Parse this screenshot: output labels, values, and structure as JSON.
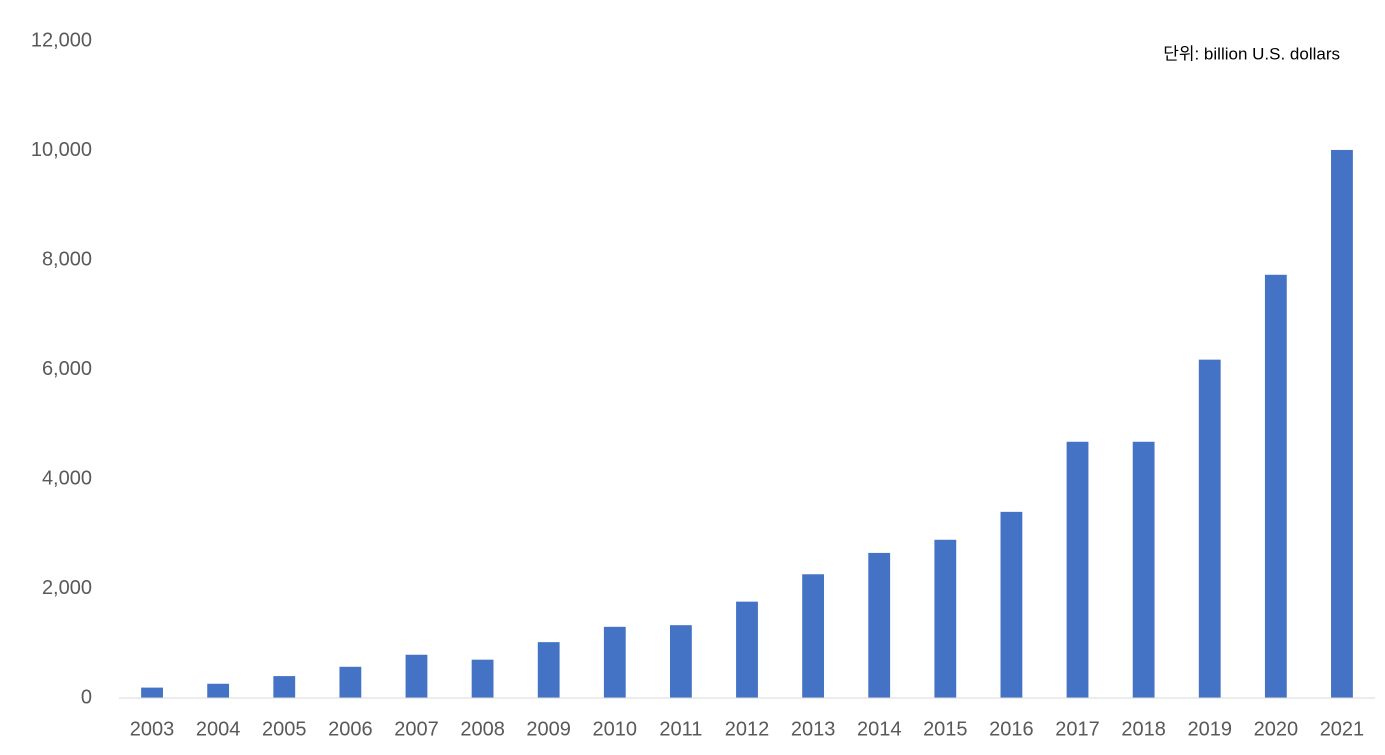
{
  "chart_data": {
    "type": "bar",
    "annotation": "단위: billion U.S. dollars",
    "categories": [
      "2003",
      "2004",
      "2005",
      "2006",
      "2007",
      "2008",
      "2009",
      "2010",
      "2011",
      "2012",
      "2013",
      "2014",
      "2015",
      "2016",
      "2017",
      "2018",
      "2019",
      "2020",
      "2021"
    ],
    "values": [
      190,
      260,
      400,
      570,
      790,
      700,
      1020,
      1300,
      1330,
      1760,
      2260,
      2650,
      2890,
      3400,
      4680,
      4680,
      6180,
      7730,
      10010
    ],
    "color": "#4472c4",
    "ylim": [
      0,
      12000
    ],
    "yticks": [
      0,
      {
        "value": 2000,
        "label": "2,000"
      },
      {
        "value": 4000,
        "label": "4,000"
      },
      {
        "value": 6000,
        "label": "6,000"
      },
      {
        "value": 8000,
        "label": "8,000"
      },
      {
        "value": 10000,
        "label": "10,000"
      },
      {
        "value": 12000,
        "label": "12,000"
      }
    ],
    "grid": false
  }
}
